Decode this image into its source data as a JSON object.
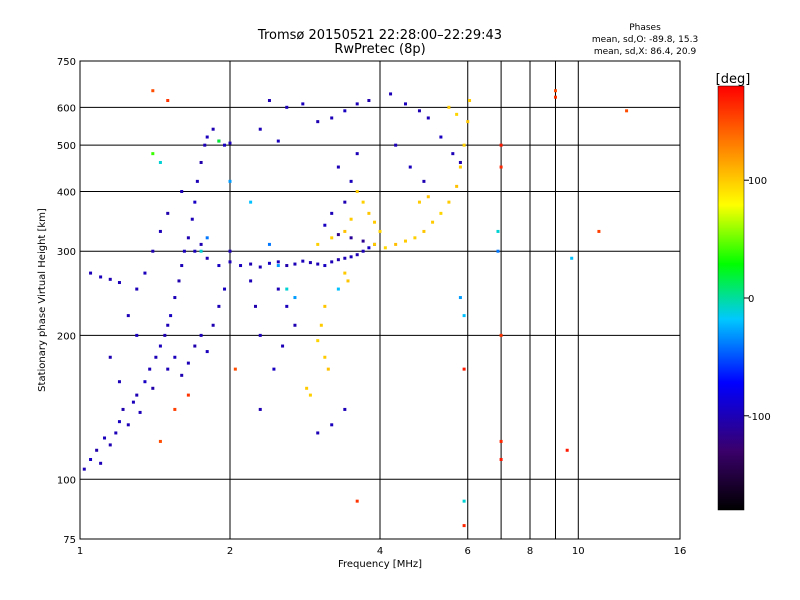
{
  "title": {
    "line1": "Tromsø 20150521 22:28:00–22:29:43",
    "line2": "RwPretec (8p)"
  },
  "stats": {
    "heading": "Phases",
    "o_line": "mean, sd,O: -89.8, 15.3",
    "x_line": "mean, sd,X: 86.4, 20.9"
  },
  "colorbar": {
    "unit_label": "[deg]",
    "ticks": [
      {
        "label": "100",
        "value": 100
      },
      {
        "label": "0",
        "value": 0
      },
      {
        "label": "-100",
        "value": -100
      }
    ],
    "range": [
      -180,
      180
    ],
    "colors": [
      "#000000",
      "#3a006b",
      "#0000ff",
      "#00c8ff",
      "#00ff00",
      "#ffff00",
      "#ff8000",
      "#ff0000"
    ]
  },
  "chart_data": {
    "type": "scatter",
    "title": "Tromsø 20150521 22:28:00–22:29:43",
    "subtitle": "RwPretec (8p)",
    "xlabel": "Frequency [MHz]",
    "ylabel": "Stationary phase Virtual Height [km]",
    "xscale": "log",
    "yscale": "log",
    "xlim": [
      1,
      16
    ],
    "ylim": [
      75,
      750
    ],
    "xticks": [
      {
        "value": 1,
        "label": "1"
      },
      {
        "value": 2,
        "label": "2"
      },
      {
        "value": 4,
        "label": "4"
      },
      {
        "value": 6,
        "label": "6"
      },
      {
        "value": 8,
        "label": "8"
      },
      {
        "value": 10,
        "label": "10"
      },
      {
        "value": 16,
        "label": "16"
      }
    ],
    "xgrid": [
      2,
      4,
      6,
      7,
      8,
      9,
      10
    ],
    "yticks": [
      {
        "value": 75,
        "label": "75"
      },
      {
        "value": 100,
        "label": "100"
      },
      {
        "value": 200,
        "label": "200"
      },
      {
        "value": 300,
        "label": "300"
      },
      {
        "value": 400,
        "label": "400"
      },
      {
        "value": 500,
        "label": "500"
      },
      {
        "value": 600,
        "label": "600"
      },
      {
        "value": 750,
        "label": "750"
      }
    ],
    "ygrid": [
      100,
      200,
      300,
      400,
      500,
      600
    ],
    "grid": true,
    "colorbar_label": "[deg]",
    "point_color_variable": "phase (deg)",
    "series": [
      {
        "points": [
          [
            1.02,
            105,
            -100
          ],
          [
            1.05,
            110,
            -95
          ],
          [
            1.08,
            115,
            -105
          ],
          [
            1.1,
            108,
            -100
          ],
          [
            1.12,
            122,
            -98
          ],
          [
            1.15,
            118,
            -102
          ],
          [
            1.18,
            125,
            -100
          ],
          [
            1.2,
            132,
            -96
          ],
          [
            1.22,
            140,
            -104
          ],
          [
            1.25,
            130,
            -100
          ],
          [
            1.28,
            145,
            -98
          ],
          [
            1.3,
            150,
            -102
          ],
          [
            1.32,
            138,
            -100
          ],
          [
            1.35,
            160,
            -95
          ],
          [
            1.38,
            170,
            -100
          ],
          [
            1.4,
            155,
            -105
          ],
          [
            1.42,
            180,
            -100
          ],
          [
            1.45,
            190,
            -98
          ],
          [
            1.48,
            200,
            -102
          ],
          [
            1.5,
            210,
            -100
          ],
          [
            1.52,
            220,
            -96
          ],
          [
            1.55,
            240,
            -100
          ],
          [
            1.58,
            260,
            -104
          ],
          [
            1.6,
            280,
            -100
          ],
          [
            1.62,
            300,
            -98
          ],
          [
            1.65,
            320,
            -102
          ],
          [
            1.68,
            350,
            -100
          ],
          [
            1.7,
            380,
            -95
          ],
          [
            1.72,
            420,
            -100
          ],
          [
            1.75,
            460,
            -105
          ],
          [
            1.78,
            500,
            -100
          ],
          [
            1.8,
            520,
            -98
          ],
          [
            1.85,
            540,
            -102
          ],
          [
            1.9,
            510,
            -100
          ],
          [
            1.95,
            500,
            -96
          ],
          [
            2.0,
            505,
            -100
          ],
          [
            1.5,
            170,
            -100
          ],
          [
            1.55,
            180,
            -98
          ],
          [
            1.6,
            165,
            -102
          ],
          [
            1.65,
            175,
            -100
          ],
          [
            1.7,
            190,
            -104
          ],
          [
            1.75,
            200,
            -100
          ],
          [
            1.8,
            185,
            -98
          ],
          [
            1.85,
            210,
            -102
          ],
          [
            1.9,
            230,
            -100
          ],
          [
            1.95,
            250,
            -96
          ],
          [
            1.3,
            250,
            -100
          ],
          [
            1.35,
            270,
            -98
          ],
          [
            1.4,
            300,
            -102
          ],
          [
            1.45,
            330,
            -100
          ],
          [
            1.5,
            360,
            -104
          ],
          [
            1.6,
            400,
            -100
          ],
          [
            1.7,
            300,
            -98
          ],
          [
            1.75,
            310,
            -102
          ],
          [
            1.8,
            290,
            -100
          ],
          [
            1.9,
            280,
            -96
          ],
          [
            2.0,
            300,
            -100
          ],
          [
            1.25,
            220,
            -100
          ],
          [
            1.3,
            200,
            -98
          ],
          [
            1.15,
            180,
            -102
          ],
          [
            1.2,
            160,
            -100
          ],
          [
            1.05,
            270,
            -100
          ],
          [
            1.1,
            265,
            -98
          ],
          [
            1.15,
            262,
            -102
          ],
          [
            1.2,
            258,
            -100
          ]
        ]
      },
      {
        "points": [
          [
            2.0,
            285,
            -100
          ],
          [
            2.1,
            280,
            -98
          ],
          [
            2.2,
            282,
            -102
          ],
          [
            2.3,
            278,
            -100
          ],
          [
            2.4,
            283,
            -96
          ],
          [
            2.5,
            285,
            -100
          ],
          [
            2.6,
            280,
            -104
          ],
          [
            2.7,
            282,
            -100
          ],
          [
            2.8,
            286,
            -98
          ],
          [
            2.9,
            284,
            -102
          ],
          [
            3.0,
            282,
            -100
          ],
          [
            3.1,
            280,
            -96
          ],
          [
            3.2,
            285,
            -100
          ],
          [
            3.3,
            288,
            -104
          ],
          [
            3.4,
            290,
            -100
          ],
          [
            3.5,
            292,
            -98
          ],
          [
            3.6,
            295,
            -102
          ],
          [
            3.7,
            300,
            -100
          ],
          [
            3.8,
            305,
            -96
          ],
          [
            2.5,
            250,
            -100
          ],
          [
            2.6,
            230,
            -98
          ],
          [
            2.7,
            210,
            -102
          ],
          [
            2.55,
            190,
            -100
          ],
          [
            2.45,
            170,
            -96
          ],
          [
            2.3,
            200,
            -100
          ],
          [
            2.25,
            230,
            -104
          ],
          [
            2.2,
            260,
            -100
          ],
          [
            2.6,
            600,
            -100
          ],
          [
            2.8,
            610,
            -98
          ],
          [
            3.0,
            560,
            -102
          ],
          [
            3.2,
            570,
            -100
          ],
          [
            3.4,
            590,
            -96
          ],
          [
            3.6,
            610,
            -100
          ],
          [
            3.8,
            620,
            -104
          ],
          [
            3.3,
            450,
            -100
          ],
          [
            3.5,
            420,
            -98
          ],
          [
            3.4,
            380,
            -102
          ],
          [
            3.2,
            360,
            -100
          ],
          [
            3.1,
            340,
            -96
          ],
          [
            3.6,
            480,
            -100
          ],
          [
            2.3,
            540,
            -100
          ],
          [
            2.5,
            510,
            -98
          ],
          [
            2.4,
            620,
            -102
          ],
          [
            4.2,
            640,
            -100
          ],
          [
            4.5,
            610,
            -98
          ],
          [
            4.8,
            590,
            -102
          ],
          [
            5.0,
            570,
            -100
          ],
          [
            5.3,
            520,
            -96
          ],
          [
            5.6,
            480,
            -100
          ],
          [
            5.8,
            460,
            -104
          ],
          [
            4.3,
            500,
            -100
          ],
          [
            4.6,
            450,
            -98
          ],
          [
            4.9,
            420,
            -102
          ],
          [
            3.9,
            310,
            -110
          ],
          [
            3.7,
            315,
            -115
          ],
          [
            3.5,
            320,
            -112
          ],
          [
            3.3,
            325,
            -118
          ],
          [
            3.4,
            140,
            -100
          ],
          [
            3.2,
            130,
            -98
          ],
          [
            2.3,
            140,
            -102
          ],
          [
            3.0,
            125,
            -100
          ]
        ]
      },
      {
        "points": [
          [
            3.9,
            310,
            100
          ],
          [
            4.1,
            305,
            95
          ],
          [
            4.3,
            310,
            105
          ],
          [
            4.5,
            315,
            100
          ],
          [
            4.7,
            320,
            98
          ],
          [
            4.9,
            330,
            102
          ],
          [
            5.1,
            345,
            100
          ],
          [
            5.3,
            360,
            96
          ],
          [
            5.5,
            380,
            100
          ],
          [
            5.7,
            410,
            104
          ],
          [
            5.8,
            450,
            100
          ],
          [
            5.9,
            500,
            98
          ],
          [
            6.0,
            560,
            102
          ],
          [
            6.05,
            620,
            100
          ],
          [
            3.6,
            400,
            100
          ],
          [
            3.7,
            380,
            98
          ],
          [
            3.8,
            360,
            102
          ],
          [
            3.9,
            345,
            100
          ],
          [
            4.0,
            330,
            96
          ],
          [
            3.5,
            350,
            100
          ],
          [
            3.4,
            330,
            104
          ],
          [
            3.2,
            320,
            100
          ],
          [
            3.0,
            310,
            98
          ],
          [
            3.1,
            230,
            102
          ],
          [
            3.05,
            210,
            100
          ],
          [
            3.0,
            195,
            96
          ],
          [
            3.1,
            180,
            100
          ],
          [
            3.15,
            170,
            104
          ],
          [
            2.85,
            155,
            100
          ],
          [
            2.9,
            150,
            98
          ],
          [
            3.4,
            270,
            100
          ],
          [
            3.45,
            260,
            102
          ],
          [
            5.5,
            600,
            100
          ],
          [
            5.7,
            580,
            96
          ],
          [
            4.8,
            380,
            100
          ],
          [
            5.0,
            390,
            104
          ]
        ]
      },
      {
        "points": [
          [
            1.4,
            480,
            40
          ],
          [
            1.45,
            460,
            -10
          ],
          [
            1.9,
            510,
            20
          ],
          [
            2.0,
            420,
            -30
          ],
          [
            2.2,
            380,
            -20
          ],
          [
            2.4,
            310,
            -40
          ],
          [
            2.6,
            250,
            -10
          ],
          [
            2.7,
            240,
            -30
          ],
          [
            3.3,
            250,
            -20
          ],
          [
            6.9,
            330,
            -10
          ],
          [
            6.9,
            300,
            -40
          ],
          [
            9.7,
            290,
            -20
          ],
          [
            5.8,
            240,
            -30
          ],
          [
            5.9,
            220,
            -20
          ],
          [
            1.8,
            320,
            -40
          ],
          [
            1.75,
            300,
            -10
          ],
          [
            2.5,
            280,
            -30
          ],
          [
            5.9,
            90,
            -10
          ]
        ]
      },
      {
        "points": [
          [
            1.4,
            650,
            150
          ],
          [
            1.5,
            620,
            160
          ],
          [
            2.05,
            170,
            150
          ],
          [
            1.65,
            150,
            160
          ],
          [
            1.55,
            140,
            155
          ],
          [
            1.45,
            120,
            150
          ],
          [
            7.0,
            500,
            170
          ],
          [
            7.0,
            450,
            165
          ],
          [
            7.0,
            200,
            160
          ],
          [
            7.0,
            110,
            170
          ],
          [
            7.0,
            120,
            165
          ],
          [
            9.0,
            650,
            150
          ],
          [
            9.0,
            630,
            160
          ],
          [
            9.5,
            115,
            170
          ],
          [
            11.0,
            330,
            155
          ],
          [
            12.5,
            590,
            150
          ],
          [
            3.6,
            90,
            160
          ],
          [
            5.9,
            80,
            165
          ],
          [
            5.9,
            170,
            170
          ]
        ]
      }
    ]
  }
}
